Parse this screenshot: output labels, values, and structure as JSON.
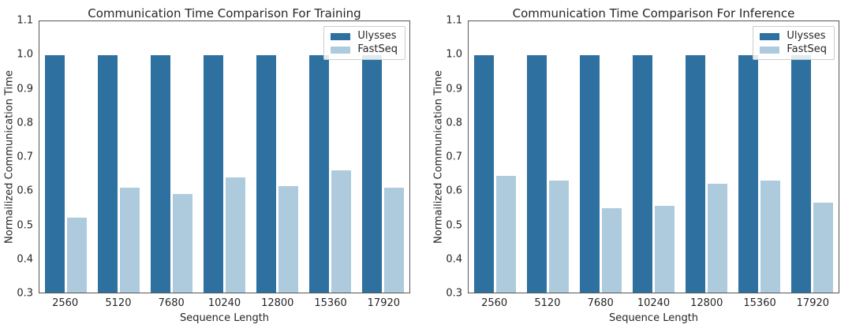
{
  "figure": {
    "background": "#ffffff",
    "text_color": "#262626",
    "spine_color": "#555555"
  },
  "chart_data": [
    {
      "type": "bar",
      "title": "Communication Time Comparison For Training",
      "xlabel": "Sequence Length",
      "ylabel": "Normailized Communication Time",
      "categories": [
        "2560",
        "5120",
        "7680",
        "10240",
        "12800",
        "15360",
        "17920"
      ],
      "series": [
        {
          "name": "Ulysses",
          "color": "#2e709f",
          "values": [
            1.0,
            1.0,
            1.0,
            1.0,
            1.0,
            1.0,
            1.0
          ]
        },
        {
          "name": "FastSeq",
          "color": "#adcbdd",
          "values": [
            0.52,
            0.61,
            0.59,
            0.64,
            0.615,
            0.66,
            0.61
          ]
        }
      ],
      "ylim": [
        0.3,
        1.1
      ],
      "ytick_step": 0.1,
      "grid": false,
      "legend_position": "upper right"
    },
    {
      "type": "bar",
      "title": "Communication Time Comparison For Inference",
      "xlabel": "Sequence Length",
      "ylabel": "Normailized Communication Time",
      "categories": [
        "2560",
        "5120",
        "7680",
        "10240",
        "12800",
        "15360",
        "17920"
      ],
      "series": [
        {
          "name": "Ulysses",
          "color": "#2e709f",
          "values": [
            1.0,
            1.0,
            1.0,
            1.0,
            1.0,
            1.0,
            1.0
          ]
        },
        {
          "name": "FastSeq",
          "color": "#adcbdd",
          "values": [
            0.645,
            0.63,
            0.55,
            0.555,
            0.62,
            0.63,
            0.565
          ]
        }
      ],
      "ylim": [
        0.3,
        1.1
      ],
      "ytick_step": 0.1,
      "grid": false,
      "legend_position": "upper right"
    }
  ]
}
